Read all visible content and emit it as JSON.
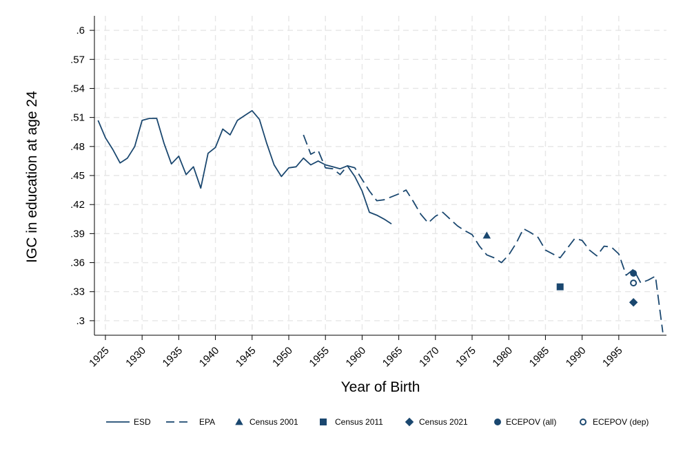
{
  "chart_data": {
    "type": "line",
    "xlabel": "Year of Birth",
    "ylabel": "IGC in education at age 24",
    "xlim": [
      1923.5,
      2001.5
    ],
    "ylim": [
      0.285,
      0.615
    ],
    "x_ticks": [
      1925,
      1930,
      1935,
      1940,
      1945,
      1950,
      1955,
      1960,
      1965,
      1970,
      1975,
      1980,
      1985,
      1990,
      1995
    ],
    "x_tick_labels": [
      "1925",
      "1930",
      "1935",
      "1940",
      "1945",
      "1950",
      "1955",
      "1960",
      "1965",
      "1970",
      "1975",
      "1980",
      "1985",
      "1990",
      "1995"
    ],
    "y_ticks": [
      0.3,
      0.33,
      0.36,
      0.39,
      0.42,
      0.45,
      0.48,
      0.51,
      0.54,
      0.57,
      0.6
    ],
    "y_tick_labels": [
      ".3",
      ".33",
      ".36",
      ".39",
      ".42",
      ".45",
      ".48",
      ".51",
      ".54",
      ".57",
      ".6"
    ],
    "grid": true,
    "color": "#1a476f",
    "series": [
      {
        "name": "ESD",
        "style": "solid",
        "x": [
          1924,
          1925,
          1926,
          1927,
          1928,
          1929,
          1930,
          1931,
          1932,
          1933,
          1934,
          1935,
          1936,
          1937,
          1938,
          1939,
          1940,
          1941,
          1942,
          1943,
          1944,
          1945,
          1946,
          1947,
          1948,
          1949,
          1950,
          1951,
          1952,
          1953,
          1954,
          1955,
          1956,
          1957,
          1958,
          1959,
          1960,
          1961,
          1962,
          1963,
          1964
        ],
        "values": [
          0.507,
          0.489,
          0.477,
          0.463,
          0.468,
          0.48,
          0.507,
          0.509,
          0.509,
          0.483,
          0.462,
          0.47,
          0.451,
          0.459,
          0.437,
          0.473,
          0.479,
          0.498,
          0.492,
          0.507,
          0.512,
          0.517,
          0.508,
          0.483,
          0.461,
          0.449,
          0.458,
          0.459,
          0.468,
          0.461,
          0.465,
          0.461,
          0.459,
          0.457,
          0.46,
          0.449,
          0.434,
          0.412,
          0.409,
          0.405,
          0.4
        ]
      },
      {
        "name": "EPA",
        "style": "dashed",
        "x": [
          1952,
          1953,
          1954,
          1955,
          1956,
          1957,
          1958,
          1959,
          1960,
          1961,
          1962,
          1963,
          1964,
          1965,
          1966,
          1967,
          1968,
          1969,
          1970,
          1971,
          1972,
          1973,
          1974,
          1975,
          1976,
          1977,
          1978,
          1979,
          1980,
          1981,
          1982,
          1983,
          1984,
          1985,
          1986,
          1987,
          1988,
          1989,
          1990,
          1991,
          1992,
          1993,
          1994,
          1995,
          1996,
          1997,
          1998,
          1999,
          2000,
          2001
        ],
        "values": [
          0.492,
          0.472,
          0.476,
          0.458,
          0.457,
          0.451,
          0.46,
          0.458,
          0.446,
          0.434,
          0.424,
          0.425,
          0.428,
          0.431,
          0.435,
          0.423,
          0.41,
          0.401,
          0.408,
          0.412,
          0.405,
          0.398,
          0.393,
          0.389,
          0.377,
          0.368,
          0.365,
          0.36,
          0.368,
          0.38,
          0.395,
          0.391,
          0.386,
          0.373,
          0.369,
          0.365,
          0.375,
          0.385,
          0.383,
          0.373,
          0.367,
          0.377,
          0.376,
          0.369,
          0.347,
          0.353,
          0.339,
          0.342,
          0.346,
          0.288
        ]
      }
    ],
    "points": [
      {
        "name": "Census 2001",
        "marker": "triangle",
        "x": 1977,
        "y": 0.388
      },
      {
        "name": "Census 2011",
        "marker": "square",
        "x": 1987,
        "y": 0.335
      },
      {
        "name": "Census 2021",
        "marker": "diamond",
        "x": 1997,
        "y": 0.319
      },
      {
        "name": "ECEPOV (all)",
        "marker": "circle",
        "x": 1997,
        "y": 0.349
      },
      {
        "name": "ECEPOV (dep)",
        "marker": "circle-hollow",
        "x": 1997,
        "y": 0.339
      }
    ],
    "legend": {
      "position": "bottom",
      "entries": [
        {
          "label": "ESD",
          "symbol": "solid-line"
        },
        {
          "label": "EPA",
          "symbol": "dashed-line"
        },
        {
          "label": "Census 2001",
          "symbol": "triangle"
        },
        {
          "label": "Census 2011",
          "symbol": "square"
        },
        {
          "label": "Census 2021",
          "symbol": "diamond"
        },
        {
          "label": "ECEPOV (all)",
          "symbol": "circle"
        },
        {
          "label": "ECEPOV (dep)",
          "symbol": "circle-hollow"
        }
      ]
    }
  }
}
